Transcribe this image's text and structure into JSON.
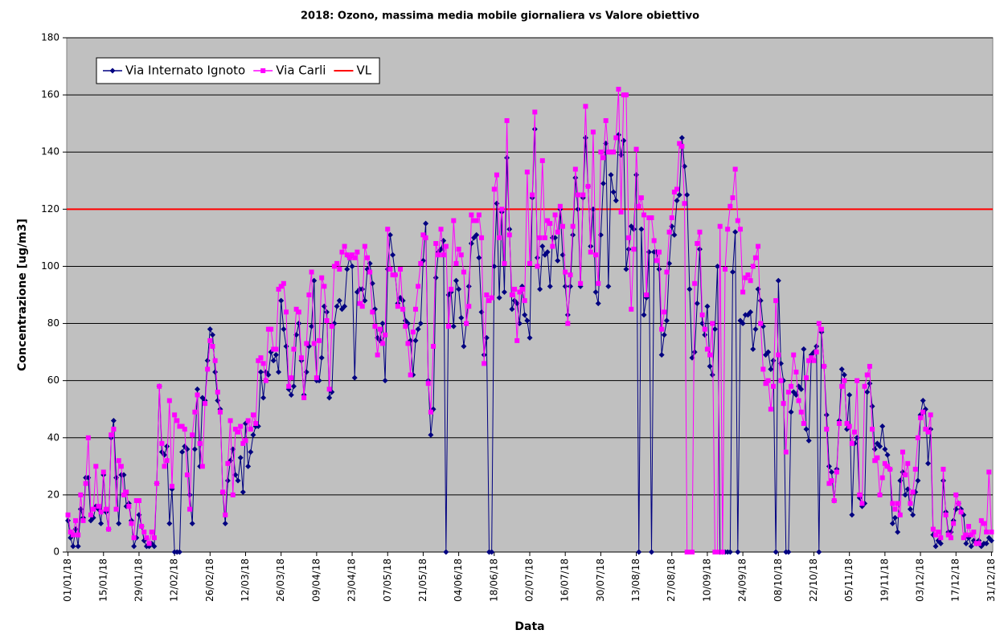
{
  "chart_data": {
    "type": "line",
    "title": "2018: Ozono, massima media mobile giornaliera vs Valore obiettivo",
    "x_label": "Data",
    "y_label": "Concentrazione [ug/m3]",
    "categories": [
      "01/01/18",
      null,
      null,
      null,
      null,
      null,
      null,
      null,
      null,
      null,
      null,
      null,
      null,
      null,
      "15/01/18",
      null,
      null,
      null,
      null,
      null,
      null,
      null,
      null,
      null,
      null,
      null,
      null,
      null,
      "29/01/18",
      null,
      null,
      null,
      null,
      null,
      null,
      null,
      null,
      null,
      null,
      null,
      null,
      null,
      "12/02/18",
      null,
      null,
      null,
      null,
      null,
      null,
      null,
      null,
      null,
      null,
      null,
      null,
      null,
      "26/02/18",
      null,
      null,
      null,
      null,
      null,
      null,
      null,
      null,
      null,
      null,
      null,
      null,
      null,
      "12/03/18",
      null,
      null,
      null,
      null,
      null,
      null,
      null,
      null,
      null,
      null,
      null,
      null,
      null,
      "26/03/18",
      null,
      null,
      null,
      null,
      null,
      null,
      null,
      null,
      null,
      null,
      null,
      null,
      null,
      "09/04/18",
      null,
      null,
      null,
      null,
      null,
      null,
      null,
      null,
      null,
      null,
      null,
      null,
      null,
      "23/04/18",
      null,
      null,
      null,
      null,
      null,
      null,
      null,
      null,
      null,
      null,
      null,
      null,
      null,
      "07/05/18",
      null,
      null,
      null,
      null,
      null,
      null,
      null,
      null,
      null,
      null,
      null,
      null,
      null,
      "21/05/18",
      null,
      null,
      null,
      null,
      null,
      null,
      null,
      null,
      null,
      null,
      null,
      null,
      null,
      "04/06/18",
      null,
      null,
      null,
      null,
      null,
      null,
      null,
      null,
      null,
      null,
      null,
      null,
      null,
      "18/06/18",
      null,
      null,
      null,
      null,
      null,
      null,
      null,
      null,
      null,
      null,
      null,
      null,
      null,
      "02/07/18",
      null,
      null,
      null,
      null,
      null,
      null,
      null,
      null,
      null,
      null,
      null,
      null,
      null,
      "16/07/18",
      null,
      null,
      null,
      null,
      null,
      null,
      null,
      null,
      null,
      null,
      null,
      null,
      null,
      "30/07/18",
      null,
      null,
      null,
      null,
      null,
      null,
      null,
      null,
      null,
      null,
      null,
      null,
      null,
      "13/08/18",
      null,
      null,
      null,
      null,
      null,
      null,
      null,
      null,
      null,
      null,
      null,
      null,
      null,
      "27/08/18",
      null,
      null,
      null,
      null,
      null,
      null,
      null,
      null,
      null,
      null,
      null,
      null,
      null,
      "10/09/18",
      null,
      null,
      null,
      null,
      null,
      null,
      null,
      null,
      null,
      null,
      null,
      null,
      null,
      "24/09/18",
      null,
      null,
      null,
      null,
      null,
      null,
      null,
      null,
      null,
      null,
      null,
      null,
      null,
      "08/10/18",
      null,
      null,
      null,
      null,
      null,
      null,
      null,
      null,
      null,
      null,
      null,
      null,
      null,
      "22/10/18",
      null,
      null,
      null,
      null,
      null,
      null,
      null,
      null,
      null,
      null,
      null,
      null,
      null,
      "05/11/18",
      null,
      null,
      null,
      null,
      null,
      null,
      null,
      null,
      null,
      null,
      null,
      null,
      null,
      "19/11/18",
      null,
      null,
      null,
      null,
      null,
      null,
      null,
      null,
      null,
      null,
      null,
      null,
      null,
      "03/12/18",
      null,
      null,
      null,
      null,
      null,
      null,
      null,
      null,
      null,
      null,
      null,
      null,
      null,
      "17/12/18",
      null,
      null,
      null,
      null,
      null,
      null,
      null,
      null,
      null,
      null,
      null,
      null,
      null,
      "31/12/18"
    ],
    "series": [
      {
        "name": "Via Internato Ignoto",
        "color": "#000080",
        "marker": "diamond",
        "values": [
          11,
          5,
          2,
          8,
          2,
          15,
          12,
          26,
          26,
          11,
          12,
          16,
          15,
          10,
          27,
          14,
          8,
          40,
          46,
          26,
          10,
          27,
          27,
          16,
          17,
          11,
          2,
          5,
          13,
          9,
          4,
          2,
          2,
          3,
          2,
          24,
          58,
          35,
          34,
          37,
          10,
          22,
          0,
          0,
          0,
          35,
          37,
          36,
          20,
          10,
          36,
          57,
          30,
          54,
          53,
          67,
          78,
          76,
          63,
          53,
          50,
          21,
          10,
          25,
          32,
          36,
          27,
          25,
          33,
          21,
          45,
          30,
          35,
          41,
          44,
          44,
          63,
          54,
          63,
          62,
          70,
          67,
          69,
          63,
          88,
          78,
          72,
          57,
          55,
          58,
          76,
          80,
          67,
          55,
          63,
          72,
          79,
          95,
          60,
          60,
          68,
          86,
          84,
          54,
          56,
          80,
          86,
          88,
          85,
          86,
          99,
          103,
          100,
          61,
          91,
          92,
          92,
          88,
          99,
          101,
          94,
          85,
          75,
          74,
          80,
          60,
          99,
          111,
          104,
          97,
          87,
          89,
          88,
          81,
          80,
          74,
          62,
          74,
          78,
          80,
          102,
          115,
          60,
          41,
          50,
          96,
          105,
          106,
          109,
          0,
          90,
          91,
          79,
          95,
          92,
          82,
          72,
          80,
          93,
          108,
          110,
          111,
          103,
          84,
          69,
          75,
          0,
          0,
          100,
          122,
          89,
          119,
          91,
          138,
          113,
          85,
          88,
          87,
          80,
          93,
          83,
          81,
          75,
          124,
          148,
          103,
          92,
          107,
          104,
          105,
          93,
          110,
          110,
          102,
          120,
          104,
          93,
          83,
          93,
          111,
          131,
          120,
          93,
          124,
          145,
          128,
          107,
          120,
          91,
          87,
          111,
          129,
          143,
          93,
          132,
          126,
          123,
          146,
          139,
          144,
          99,
          106,
          114,
          113,
          132,
          0,
          113,
          83,
          89,
          105,
          0,
          105,
          105,
          99,
          69,
          76,
          81,
          101,
          114,
          111,
          123,
          125,
          145,
          135,
          125,
          92,
          68,
          70,
          87,
          106,
          80,
          76,
          86,
          65,
          62,
          78,
          100,
          0,
          0,
          0,
          0,
          0,
          98,
          112,
          0,
          81,
          80,
          83,
          83,
          84,
          71,
          78,
          92,
          88,
          79,
          69,
          70,
          64,
          67,
          0,
          95,
          66,
          60,
          0,
          0,
          49,
          56,
          55,
          58,
          57,
          71,
          43,
          39,
          69,
          70,
          72,
          0,
          77,
          65,
          48,
          30,
          28,
          18,
          29,
          46,
          64,
          62,
          43,
          55,
          13,
          38,
          40,
          19,
          16,
          17,
          56,
          59,
          51,
          36,
          38,
          37,
          44,
          36,
          34,
          29,
          10,
          12,
          7,
          25,
          28,
          20,
          22,
          15,
          13,
          21,
          25,
          48,
          53,
          50,
          31,
          43,
          6,
          2,
          4,
          3,
          25,
          14,
          7,
          7,
          11,
          15,
          17,
          15,
          13,
          3,
          5,
          2,
          4,
          3,
          4,
          2,
          3,
          3,
          5,
          4
        ]
      },
      {
        "name": "Via Carli",
        "color": "#ff00ff",
        "marker": "square",
        "values": [
          13,
          7,
          6,
          11,
          6,
          20,
          11,
          24,
          40,
          13,
          15,
          30,
          16,
          14,
          28,
          15,
          8,
          41,
          43,
          15,
          32,
          30,
          20,
          21,
          16,
          10,
          5,
          18,
          18,
          9,
          7,
          5,
          3,
          7,
          5,
          24,
          58,
          38,
          30,
          32,
          53,
          23,
          48,
          46,
          44,
          44,
          43,
          27,
          15,
          41,
          49,
          55,
          38,
          30,
          52,
          64,
          74,
          72,
          67,
          56,
          49,
          21,
          13,
          31,
          46,
          20,
          43,
          42,
          44,
          38,
          39,
          46,
          43,
          48,
          45,
          67,
          68,
          66,
          60,
          78,
          78,
          71,
          71,
          92,
          93,
          94,
          84,
          58,
          61,
          71,
          85,
          84,
          68,
          54,
          73,
          90,
          98,
          73,
          61,
          74,
          96,
          93,
          81,
          57,
          79,
          100,
          101,
          99,
          105,
          107,
          104,
          103,
          104,
          103,
          105,
          87,
          86,
          107,
          103,
          98,
          84,
          79,
          69,
          78,
          73,
          76,
          113,
          99,
          97,
          97,
          86,
          99,
          85,
          79,
          73,
          62,
          77,
          85,
          93,
          101,
          111,
          110,
          59,
          49,
          72,
          108,
          104,
          113,
          104,
          107,
          79,
          92,
          116,
          101,
          106,
          104,
          98,
          80,
          86,
          118,
          116,
          116,
          118,
          110,
          66,
          90,
          88,
          89,
          127,
          132,
          110,
          120,
          101,
          151,
          111,
          90,
          92,
          74,
          91,
          92,
          88,
          133,
          101,
          125,
          154,
          100,
          110,
          137,
          110,
          116,
          115,
          107,
          118,
          112,
          121,
          114,
          98,
          80,
          97,
          114,
          134,
          125,
          94,
          125,
          156,
          128,
          105,
          147,
          104,
          94,
          140,
          138,
          151,
          140,
          140,
          140,
          145,
          162,
          119,
          160,
          160,
          110,
          85,
          106,
          141,
          121,
          124,
          118,
          90,
          117,
          117,
          109,
          102,
          105,
          78,
          84,
          98,
          112,
          117,
          126,
          127,
          143,
          142,
          122,
          0,
          0,
          0,
          94,
          108,
          112,
          83,
          78,
          71,
          69,
          80,
          0,
          0,
          114,
          0,
          99,
          113,
          121,
          124,
          134,
          116,
          113,
          91,
          96,
          97,
          95,
          100,
          103,
          107,
          80,
          64,
          59,
          60,
          50,
          58,
          88,
          69,
          60,
          52,
          35,
          56,
          58,
          69,
          63,
          53,
          49,
          45,
          61,
          67,
          68,
          67,
          70,
          80,
          78,
          65,
          43,
          24,
          25,
          18,
          28,
          45,
          58,
          60,
          45,
          44,
          38,
          42,
          60,
          20,
          17,
          58,
          62,
          65,
          43,
          32,
          33,
          20,
          26,
          31,
          30,
          29,
          17,
          15,
          17,
          13,
          35,
          27,
          31,
          17,
          21,
          29,
          40,
          47,
          49,
          43,
          42,
          48,
          8,
          6,
          7,
          5,
          29,
          13,
          6,
          5,
          10,
          20,
          17,
          14,
          5,
          6,
          9,
          6,
          7,
          3,
          3,
          11,
          10,
          7,
          28,
          7
        ]
      }
    ],
    "threshold": {
      "name": "VL",
      "color": "#ff0000",
      "value": 120
    },
    "ylim": [
      0,
      180
    ],
    "yticks": [
      0,
      20,
      40,
      60,
      80,
      100,
      120,
      140,
      160,
      180
    ],
    "grid": true,
    "legend": "top-left",
    "plot_background": "#c0c0c0"
  }
}
